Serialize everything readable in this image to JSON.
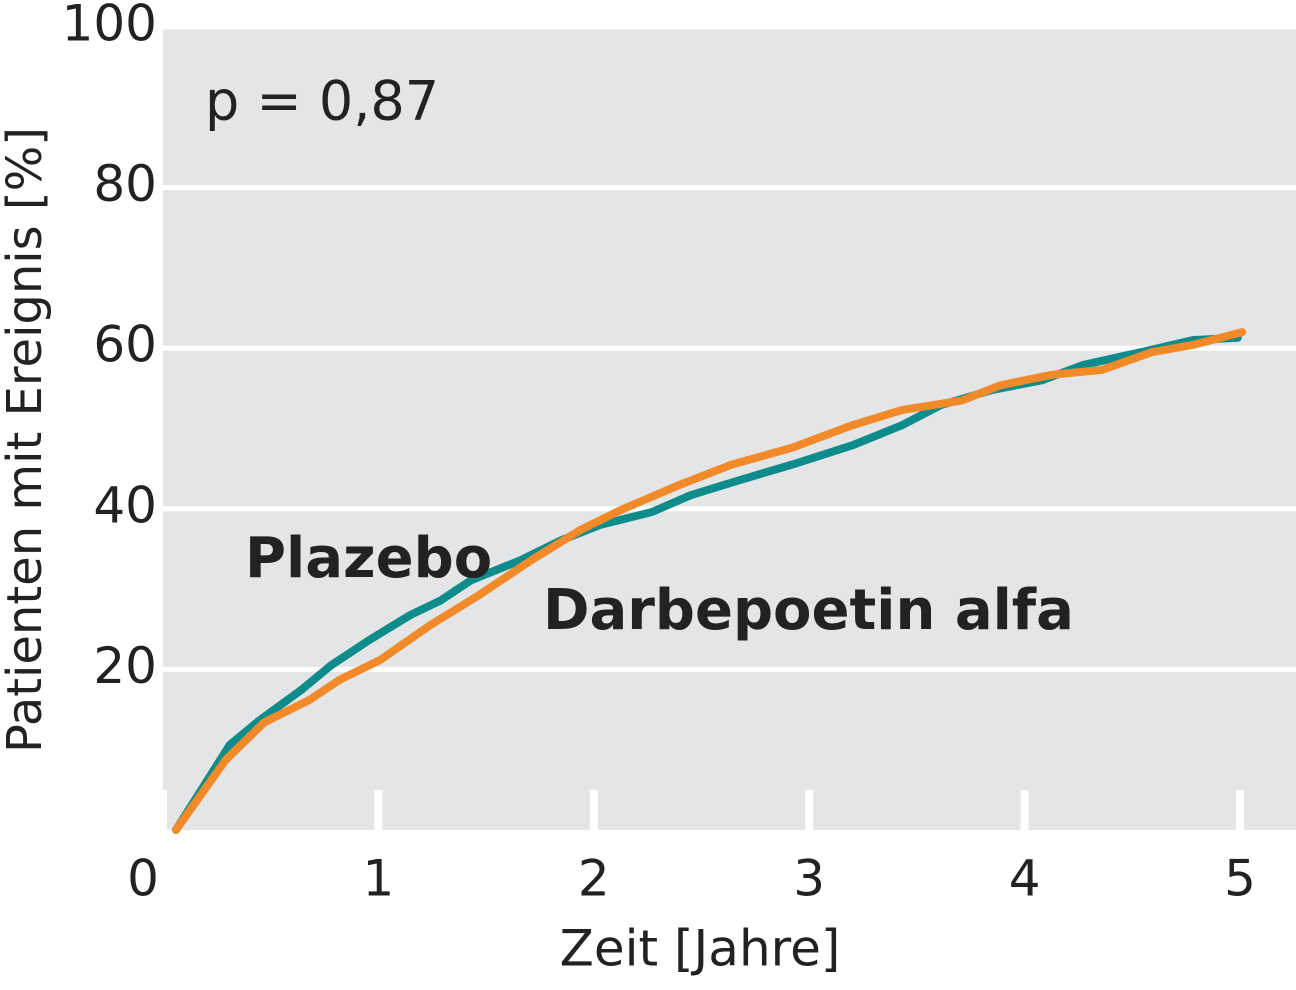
{
  "chart_data": {
    "type": "line",
    "ylabel": "Patienten mit Ereignis [%]",
    "xlabel": "Zeit [Jahre]",
    "annotation": "p = 0,87",
    "xlim": [
      0,
      5.26
    ],
    "ylim": [
      0,
      100
    ],
    "xticks": [
      0,
      1,
      2,
      3,
      4,
      5
    ],
    "yticks": [
      20,
      40,
      60,
      80,
      100
    ],
    "grid": true,
    "background": "#e4e5e7",
    "series": [
      {
        "name": "Plazebo",
        "color": "#0e8b8b",
        "x": [
          0.06,
          0.31,
          0.45,
          0.64,
          0.78,
          0.96,
          1.15,
          1.29,
          1.43,
          1.66,
          1.85,
          2.03,
          2.27,
          2.45,
          2.68,
          2.92,
          3.2,
          3.43,
          3.61,
          3.85,
          4.08,
          4.27,
          4.54,
          4.78,
          4.99
        ],
        "values": [
          0,
          10.6,
          13.7,
          17.4,
          20.5,
          23.7,
          26.8,
          28.6,
          31.1,
          33.6,
          36.1,
          38,
          39.6,
          41.7,
          43.6,
          45.5,
          47.9,
          50.4,
          52.9,
          54.8,
          56,
          57.9,
          59.5,
          61,
          61.3
        ]
      },
      {
        "name": "Darbepoetin alfa",
        "color": "#f28a2a",
        "x": [
          0.06,
          0.29,
          0.47,
          0.68,
          0.82,
          1.01,
          1.24,
          1.47,
          1.71,
          1.94,
          2.13,
          2.4,
          2.64,
          2.92,
          3.2,
          3.43,
          3.71,
          3.89,
          4.13,
          4.36,
          4.59,
          4.78,
          5.01
        ],
        "values": [
          0,
          8.7,
          13.4,
          16.2,
          18.7,
          21.2,
          25.5,
          29.3,
          33.6,
          37.4,
          39.9,
          43,
          45.5,
          47.6,
          50.4,
          52.3,
          53.5,
          55.4,
          56.7,
          57.3,
          59.5,
          60.4,
          62
        ]
      }
    ]
  }
}
